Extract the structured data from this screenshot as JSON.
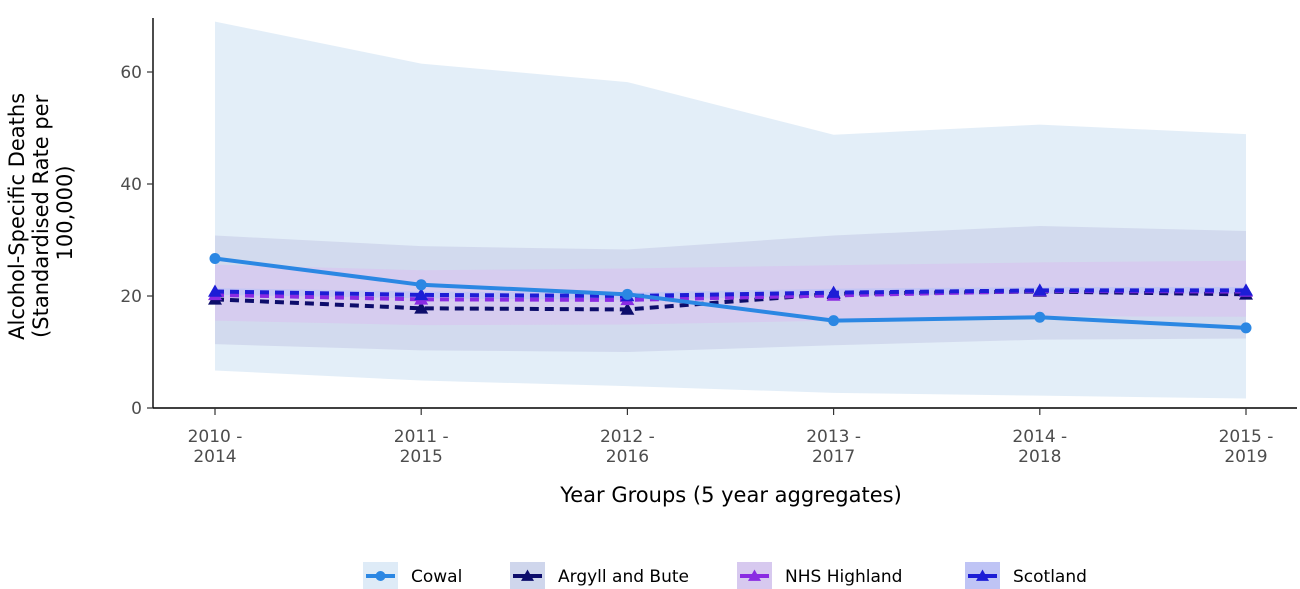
{
  "chart_data": {
    "type": "line",
    "title": "",
    "xlabel": "Year Groups (5 year aggregates)",
    "ylabel_lines": [
      "Alcohol-Specific Deaths",
      "(Standardised Rate per",
      "100,000)"
    ],
    "categories": [
      [
        "2010 -",
        "2014"
      ],
      [
        "2011 -",
        "2015"
      ],
      [
        "2012 -",
        "2016"
      ],
      [
        "2013 -",
        "2017"
      ],
      [
        "2014 -",
        "2018"
      ],
      [
        "2015 -",
        "2019"
      ]
    ],
    "ylim": [
      0,
      70
    ],
    "yticks": [
      0,
      20,
      40,
      60
    ],
    "grid": false,
    "legend_position": "bottom",
    "series": [
      {
        "name": "Cowal",
        "color": "#2b87e3",
        "line_style": "solid",
        "marker": "circle",
        "values": [
          26.7,
          22.0,
          20.3,
          15.6,
          16.2,
          14.3
        ],
        "ci_lower": [
          6.7,
          4.9,
          3.9,
          2.7,
          2.2,
          1.7
        ],
        "ci_upper": [
          69.0,
          61.5,
          58.2,
          48.8,
          50.6,
          48.9
        ],
        "band_color": "#deebf7"
      },
      {
        "name": "Argyll and Bute",
        "color": "#0d0d6b",
        "line_style": "dashed",
        "marker": "triangle",
        "values": [
          19.4,
          17.8,
          17.6,
          20.4,
          20.8,
          20.3
        ],
        "ci_lower": [
          11.4,
          10.3,
          10.0,
          11.2,
          12.2,
          12.4
        ],
        "ci_upper": [
          30.8,
          28.9,
          28.3,
          30.8,
          32.5,
          31.6
        ],
        "band_color": "#cfd6ec"
      },
      {
        "name": "NHS Highland",
        "color": "#8a2be2",
        "line_style": "dashed",
        "marker": "triangle",
        "values": [
          20.2,
          19.4,
          19.3,
          20.1,
          20.9,
          20.8
        ],
        "ci_lower": [
          15.6,
          14.8,
          14.9,
          15.6,
          16.4,
          16.3
        ],
        "ci_upper": [
          25.6,
          24.6,
          24.9,
          25.5,
          26.0,
          26.3
        ],
        "band_color": "#d7c9ef"
      },
      {
        "name": "Scotland",
        "color": "#1d1dd6",
        "line_style": "dashed",
        "marker": "triangle",
        "values": [
          20.8,
          20.2,
          20.0,
          20.6,
          21.0,
          21.0
        ],
        "ci_lower": [
          20.2,
          19.6,
          19.3,
          20.0,
          20.4,
          20.4
        ],
        "ci_upper": [
          21.4,
          20.8,
          20.6,
          21.3,
          21.6,
          21.6
        ],
        "band_color": "#bfc4f5"
      }
    ]
  }
}
